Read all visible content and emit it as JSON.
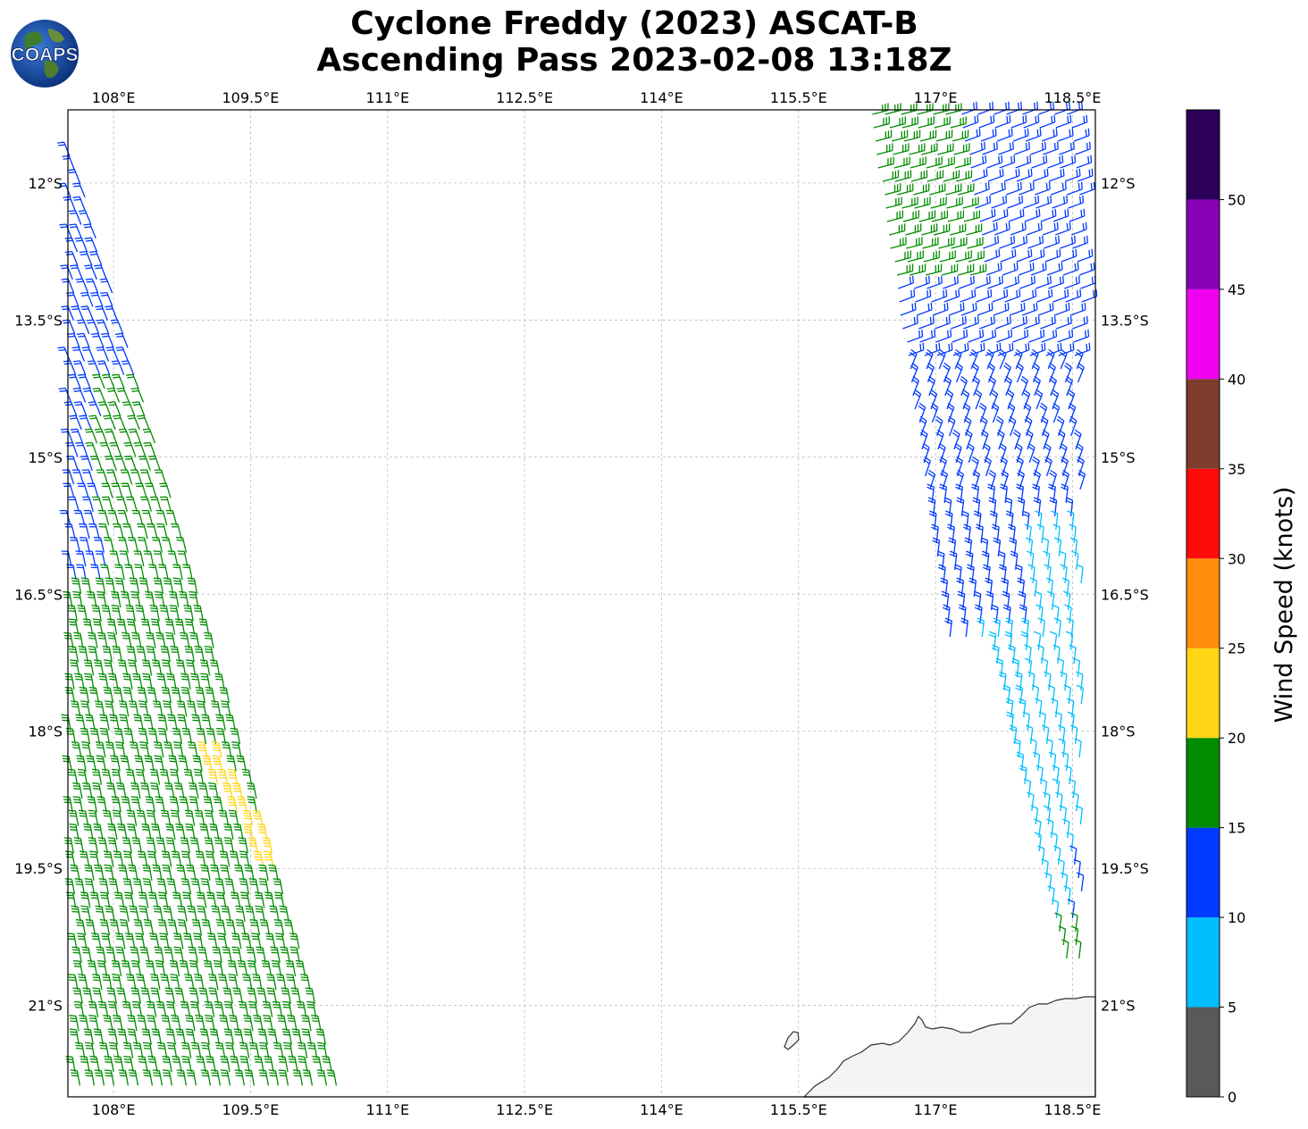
{
  "title": {
    "line1": "Cyclone Freddy (2023) ASCAT-B",
    "line2": "Ascending Pass 2023-02-08 13:18Z"
  },
  "logo": {
    "text": "COAPS",
    "icon": "globe-logo"
  },
  "map": {
    "lon_range": [
      107.5,
      118.75
    ],
    "lat_range": [
      -22.0,
      -11.2
    ],
    "lon_ticks": [
      "108°E",
      "109.5°E",
      "111°E",
      "112.5°E",
      "114°E",
      "115.5°E",
      "117°E",
      "118.5°E"
    ],
    "lon_tick_values": [
      108,
      109.5,
      111,
      112.5,
      114,
      115.5,
      117,
      118.5
    ],
    "lat_ticks": [
      "12°S",
      "13.5°S",
      "15°S",
      "16.5°S",
      "18°S",
      "19.5°S",
      "21°S"
    ],
    "lat_tick_values": [
      -12,
      -13.5,
      -15,
      -16.5,
      -18,
      -19.5,
      -21
    ],
    "gridlines": true,
    "coastline": "Western Australia (North-West coast)"
  },
  "colorbar": {
    "label": "Wind Speed (knots)",
    "ticks": [
      "0",
      "5",
      "10",
      "15",
      "20",
      "25",
      "30",
      "35",
      "40",
      "45",
      "50"
    ],
    "bins": [
      {
        "min": 0,
        "max": 5,
        "color": "#595959"
      },
      {
        "min": 5,
        "max": 10,
        "color": "#00BFFF"
      },
      {
        "min": 10,
        "max": 15,
        "color": "#0039FF"
      },
      {
        "min": 15,
        "max": 20,
        "color": "#008C00"
      },
      {
        "min": 20,
        "max": 25,
        "color": "#FFD515"
      },
      {
        "min": 25,
        "max": 30,
        "color": "#FF8C0A"
      },
      {
        "min": 30,
        "max": 35,
        "color": "#FF0A0A"
      },
      {
        "min": 35,
        "max": 40,
        "color": "#7E3C2C"
      },
      {
        "min": 40,
        "max": 45,
        "color": "#F000F0"
      },
      {
        "min": 45,
        "max": 50,
        "color": "#8800B4"
      },
      {
        "min": 50,
        "max": 55,
        "color": "#2C0059"
      }
    ]
  },
  "swaths": {
    "west": {
      "color_dominant": "#008C00",
      "secondary": "#0039FF",
      "highlight": "#FFD515"
    },
    "east": {
      "color_dominant": "#0039FF",
      "secondary": "#00BFFF",
      "north_edge": "#008C00"
    }
  }
}
